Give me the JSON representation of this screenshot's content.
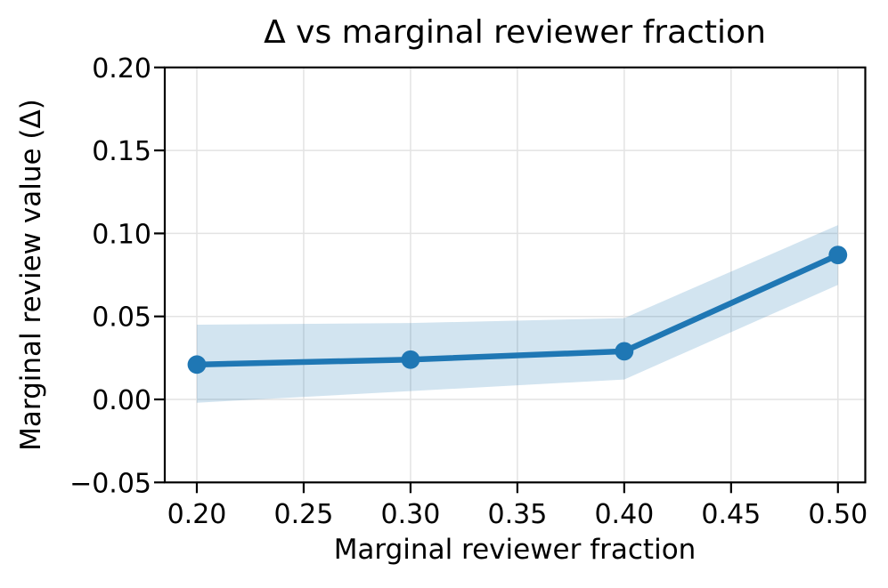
{
  "chart_data": {
    "type": "line",
    "title": "Δ vs marginal reviewer fraction",
    "xlabel": "Marginal reviewer fraction",
    "ylabel": "Marginal review value (Δ)",
    "x": [
      0.2,
      0.3,
      0.4,
      0.5
    ],
    "series": [
      {
        "name": "Marginal review value (Δ)",
        "values": [
          0.021,
          0.024,
          0.029,
          0.087
        ]
      }
    ],
    "band": {
      "name": "confidence-band",
      "lower": [
        -0.002,
        0.005,
        0.012,
        0.069
      ],
      "upper": [
        0.045,
        0.046,
        0.049,
        0.105
      ]
    },
    "xticks": {
      "values": [
        0.2,
        0.25,
        0.3,
        0.35,
        0.4,
        0.45,
        0.5
      ],
      "labels": [
        "0.20",
        "0.25",
        "0.30",
        "0.35",
        "0.40",
        "0.45",
        "0.50"
      ]
    },
    "yticks": {
      "values": [
        -0.05,
        0.0,
        0.05,
        0.1,
        0.15,
        0.2
      ],
      "labels": [
        "−0.05",
        "0.00",
        "0.05",
        "0.10",
        "0.15",
        "0.20"
      ]
    },
    "xlim": [
      0.185,
      0.5128
    ],
    "ylim": [
      -0.05,
      0.2
    ],
    "grid": true,
    "legend": "none",
    "colors": {
      "line": "#1f77b4",
      "marker": "#1f77b4",
      "band": "#1f77b4",
      "band_opacity": 0.2,
      "grid": "#e3e3e3",
      "axis": "#000000",
      "text": "#000000",
      "background": "#ffffff"
    }
  }
}
